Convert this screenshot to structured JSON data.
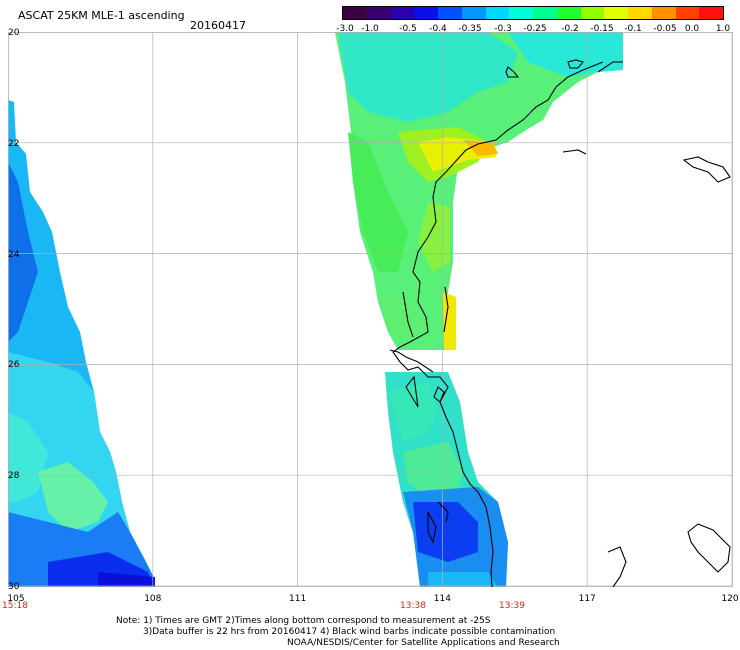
{
  "header": {
    "title": "ASCAT 25KM MLE-1 ascending",
    "date": "20160417"
  },
  "colorbar": {
    "colors": [
      "#3a0040",
      "#3b0070",
      "#2a00b0",
      "#0a10e8",
      "#0050ff",
      "#0098ff",
      "#00d8ff",
      "#00ffd8",
      "#00ff90",
      "#20ff30",
      "#90ff00",
      "#e0ff00",
      "#ffd800",
      "#ff9000",
      "#ff4000",
      "#ff1010"
    ],
    "tick_labels": [
      "-3.0",
      "-1.0",
      "-0.5",
      "-0.4",
      "-0.35",
      "-0.3",
      "-0.25",
      "-0.2",
      "-0.15",
      "-0.1",
      "-0.05",
      "0.0",
      "1.0"
    ]
  },
  "axes": {
    "lon_ticks": [
      "105",
      "108",
      "111",
      "114",
      "117",
      "120"
    ],
    "lat_ticks": [
      "20",
      "22",
      "24",
      "26",
      "28",
      "30"
    ],
    "lon_range": [
      105,
      120
    ],
    "lat_range_top_to_bottom": [
      20,
      30
    ]
  },
  "swath_times": [
    "15:18",
    "13:38",
    "13:39"
  ],
  "notes": [
    "Note: 1) Times are GMT 2)Times along bottom correspond to measurement at -25S",
    "3)Data buffer is 22 hrs from 20160417 4) Black wind barbs indicate possible contamination",
    "NOAA/NESDIS/Center for Satellite Applications and Research"
  ],
  "colors": {
    "grid": "#b0b0b0",
    "coast": "#000000",
    "time_label": "#d32a0f"
  }
}
